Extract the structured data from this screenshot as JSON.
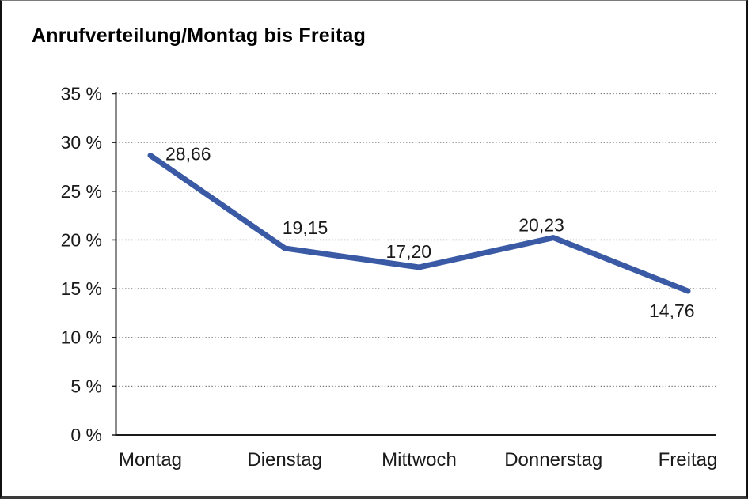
{
  "window": {
    "background": "#ffffff",
    "frame_color": "#111111"
  },
  "chart_data": {
    "type": "line",
    "title": "Anrufverteilung/Montag bis Freitag",
    "categories": [
      "Montag",
      "Dienstag",
      "Mittwoch",
      "Donnerstag",
      "Freitag"
    ],
    "series": [
      {
        "name": "Anrufverteilung",
        "values": [
          28.66,
          19.15,
          17.2,
          20.23,
          14.76
        ]
      }
    ],
    "data_labels": [
      "28,66",
      "19,15",
      "17,20",
      "20,23",
      "14,76"
    ],
    "xlabel": "",
    "ylabel": "",
    "ylim": [
      0,
      35
    ],
    "y_step": 5,
    "y_tick_labels": [
      "0 %",
      "5 %",
      "10 %",
      "15 %",
      "20 %",
      "25 %",
      "30 %",
      "35 %"
    ],
    "grid": "horizontal-dotted",
    "legend_position": "none",
    "line_color": "#3B5AA5",
    "line_width": 7,
    "axis_color": "#1a1a1a",
    "gridline_color": "#757575",
    "label_color": "#1a1a1a"
  }
}
